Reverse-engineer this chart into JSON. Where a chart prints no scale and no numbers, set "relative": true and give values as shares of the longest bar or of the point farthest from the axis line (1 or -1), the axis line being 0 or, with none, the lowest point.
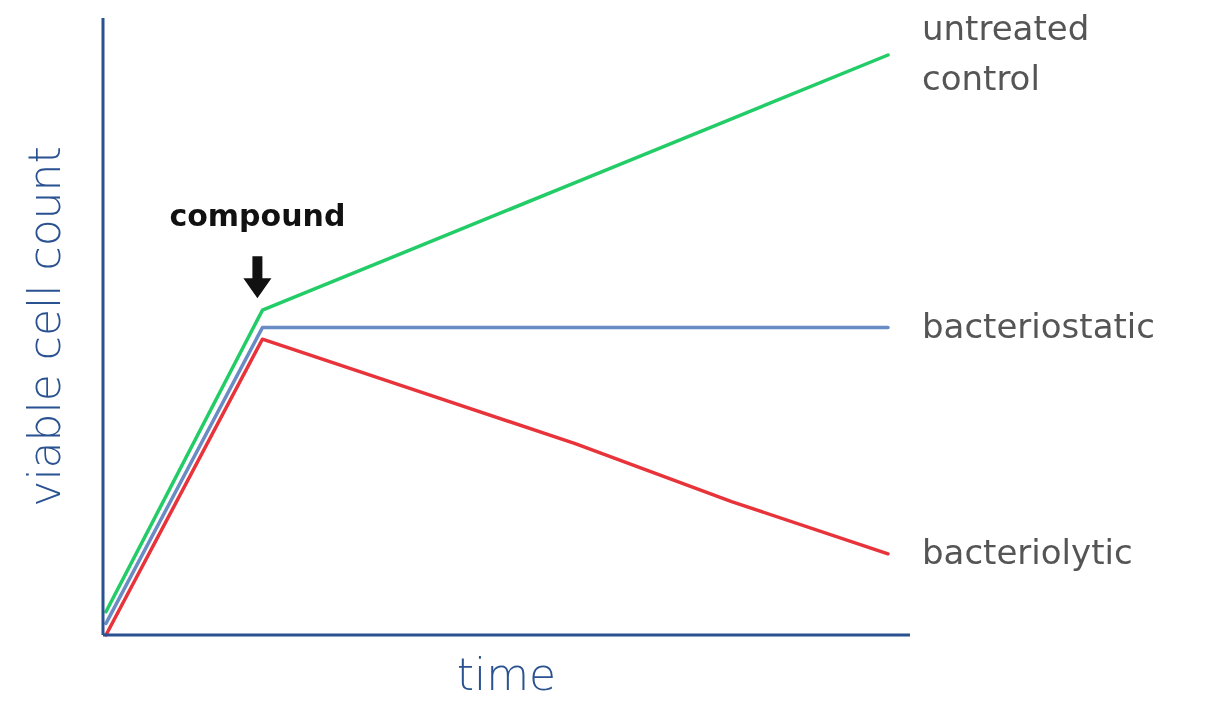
{
  "chart_data": {
    "type": "line",
    "relative": true,
    "xlabel": "time",
    "ylabel": "viable cell count",
    "legend": false,
    "categories": [
      null,
      null,
      null,
      null,
      null,
      null
    ],
    "annotations": [
      "compound"
    ],
    "series": [
      {
        "name": "untreated control",
        "color": "#22cc66",
        "values": [
          0.04,
          0.56,
          0.67,
          0.78,
          0.89,
          1
        ]
      },
      {
        "name": "bacteriostatic",
        "color": "#6a8cc4",
        "values": [
          0.02,
          0.53,
          0.53,
          0.53,
          0.53,
          0.53
        ]
      },
      {
        "name": "bacteriolytic",
        "color": "#e8333a",
        "values": [
          0,
          0.51,
          0.42,
          0.33,
          0.23,
          0.14
        ]
      }
    ]
  }
}
